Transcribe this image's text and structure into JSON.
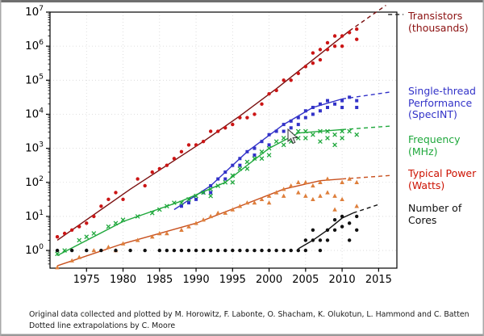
{
  "figure": {
    "caption_line1": "Original data collected and plotted by M. Horowitz, F. Labonte, O. Shacham, K. Olukotun, L. Hammond and C. Batten",
    "caption_line2": "Dotted line extrapolations by C. Moore"
  },
  "chart_data": {
    "type": "scatter",
    "title": "",
    "xlabel": "",
    "ylabel": "",
    "x_range": [
      1970,
      2017.5
    ],
    "x_ticks": [
      1975,
      1980,
      1985,
      1990,
      1995,
      2000,
      2005,
      2010,
      2015
    ],
    "y_scale": "log",
    "y_tick_exponents": [
      0,
      1,
      2,
      3,
      4,
      5,
      6,
      7
    ],
    "y_log_range": [
      -0.52,
      7.0
    ],
    "grid": "dotted",
    "extra_dashes": [
      {
        "color": "#222222",
        "from": [
          2016.3,
          6.93
        ],
        "to": [
          2018.4,
          6.93
        ]
      }
    ],
    "series": [
      {
        "name": "Transistors (thousands)",
        "label_lines": [
          "Transistors",
          "(thousands)"
        ],
        "color": "#7a1010",
        "marker_color": "#cc1515",
        "label_color": "#8b1010",
        "marker": "circle",
        "trend_solid": [
          [
            1971,
            0.3
          ],
          [
            1976,
            1.05
          ],
          [
            1981,
            1.8
          ],
          [
            1986,
            2.5
          ],
          [
            1991,
            3.2
          ],
          [
            1996,
            3.95
          ],
          [
            2001,
            4.75
          ],
          [
            2006,
            5.6
          ],
          [
            2011,
            6.45
          ]
        ],
        "trend_dashed": [
          [
            2011,
            6.45
          ],
          [
            2016,
            7.2
          ]
        ],
        "points": [
          [
            1971,
            0.4
          ],
          [
            1972,
            0.5
          ],
          [
            1973,
            0.6
          ],
          [
            1974,
            0.7
          ],
          [
            1975,
            0.8
          ],
          [
            1976,
            1.0
          ],
          [
            1977,
            1.3
          ],
          [
            1978,
            1.5
          ],
          [
            1979,
            1.7
          ],
          [
            1980,
            1.5
          ],
          [
            1982,
            2.1
          ],
          [
            1983,
            1.9
          ],
          [
            1984,
            2.3
          ],
          [
            1985,
            2.4
          ],
          [
            1986,
            2.5
          ],
          [
            1987,
            2.7
          ],
          [
            1988,
            2.9
          ],
          [
            1989,
            3.1
          ],
          [
            1990,
            3.1
          ],
          [
            1991,
            3.2
          ],
          [
            1992,
            3.5
          ],
          [
            1993,
            3.5
          ],
          [
            1994,
            3.6
          ],
          [
            1995,
            3.7
          ],
          [
            1996,
            3.9
          ],
          [
            1997,
            3.9
          ],
          [
            1998,
            4.0
          ],
          [
            1999,
            4.3
          ],
          [
            2000,
            4.6
          ],
          [
            2001,
            4.7
          ],
          [
            2002,
            5.0
          ],
          [
            2003,
            5.0
          ],
          [
            2004,
            5.2
          ],
          [
            2005,
            5.4
          ],
          [
            2006,
            5.5
          ],
          [
            2006,
            5.8
          ],
          [
            2007,
            5.9
          ],
          [
            2007,
            5.6
          ],
          [
            2008,
            5.9
          ],
          [
            2008,
            6.1
          ],
          [
            2009,
            6.0
          ],
          [
            2009,
            6.3
          ],
          [
            2010,
            6.3
          ],
          [
            2010,
            6.0
          ],
          [
            2011,
            6.4
          ],
          [
            2012,
            6.2
          ],
          [
            2012,
            6.5
          ]
        ]
      },
      {
        "name": "Single-thread Performance (SpecINT)",
        "label_lines": [
          "Single-thread",
          "Performance",
          "(SpecINT)"
        ],
        "color": "#3232c8",
        "marker": "square",
        "trend_solid": [
          [
            1987,
            1.2
          ],
          [
            1992,
            1.9
          ],
          [
            1997,
            2.9
          ],
          [
            2002,
            3.7
          ],
          [
            2006,
            4.2
          ],
          [
            2010,
            4.45
          ]
        ],
        "trend_dashed": [
          [
            2010,
            4.45
          ],
          [
            2016.5,
            4.65
          ]
        ],
        "points": [
          [
            1988,
            1.3
          ],
          [
            1989,
            1.4
          ],
          [
            1990,
            1.5
          ],
          [
            1991,
            1.7
          ],
          [
            1992,
            1.9
          ],
          [
            1992,
            1.7
          ],
          [
            1993,
            2.1
          ],
          [
            1994,
            2.3
          ],
          [
            1994,
            2.1
          ],
          [
            1995,
            2.5
          ],
          [
            1996,
            2.7
          ],
          [
            1996,
            2.5
          ],
          [
            1997,
            2.9
          ],
          [
            1998,
            3.0
          ],
          [
            1998,
            2.8
          ],
          [
            1999,
            3.2
          ],
          [
            2000,
            3.4
          ],
          [
            2000,
            3.1
          ],
          [
            2001,
            3.5
          ],
          [
            2002,
            3.7
          ],
          [
            2002,
            3.5
          ],
          [
            2003,
            3.8
          ],
          [
            2003,
            3.6
          ],
          [
            2004,
            3.9
          ],
          [
            2004,
            3.7
          ],
          [
            2005,
            4.1
          ],
          [
            2005,
            3.9
          ],
          [
            2006,
            4.2
          ],
          [
            2006,
            4.0
          ],
          [
            2007,
            4.3
          ],
          [
            2007,
            4.1
          ],
          [
            2008,
            4.4
          ],
          [
            2008,
            4.2
          ],
          [
            2009,
            4.3
          ],
          [
            2010,
            4.4
          ],
          [
            2010,
            4.2
          ],
          [
            2011,
            4.5
          ],
          [
            2012,
            4.4
          ],
          [
            2012,
            4.2
          ]
        ]
      },
      {
        "name": "Frequency (MHz)",
        "label_lines": [
          "Frequency",
          "(MHz)"
        ],
        "color": "#1fa83c",
        "marker": "x",
        "trend_solid": [
          [
            1971,
            -0.15
          ],
          [
            1980,
            0.85
          ],
          [
            1988,
            1.45
          ],
          [
            1994,
            2.0
          ],
          [
            2000,
            3.0
          ],
          [
            2004,
            3.45
          ],
          [
            2010,
            3.55
          ]
        ],
        "trend_dashed": [
          [
            2010,
            3.55
          ],
          [
            2016.5,
            3.65
          ]
        ],
        "points": [
          [
            1971,
            -0.1
          ],
          [
            1972,
            0.0
          ],
          [
            1974,
            0.3
          ],
          [
            1975,
            0.4
          ],
          [
            1976,
            0.5
          ],
          [
            1978,
            0.7
          ],
          [
            1979,
            0.8
          ],
          [
            1980,
            0.9
          ],
          [
            1982,
            1.0
          ],
          [
            1984,
            1.1
          ],
          [
            1985,
            1.2
          ],
          [
            1986,
            1.3
          ],
          [
            1987,
            1.4
          ],
          [
            1988,
            1.4
          ],
          [
            1989,
            1.5
          ],
          [
            1990,
            1.6
          ],
          [
            1991,
            1.7
          ],
          [
            1992,
            1.8
          ],
          [
            1992,
            1.6
          ],
          [
            1993,
            1.9
          ],
          [
            1994,
            2.0
          ],
          [
            1995,
            2.2
          ],
          [
            1995,
            2.0
          ],
          [
            1996,
            2.4
          ],
          [
            1997,
            2.6
          ],
          [
            1997,
            2.4
          ],
          [
            1998,
            2.7
          ],
          [
            1999,
            2.9
          ],
          [
            1999,
            2.7
          ],
          [
            2000,
            3.0
          ],
          [
            2000,
            2.8
          ],
          [
            2001,
            3.2
          ],
          [
            2002,
            3.3
          ],
          [
            2002,
            3.1
          ],
          [
            2003,
            3.4
          ],
          [
            2003,
            3.2
          ],
          [
            2004,
            3.5
          ],
          [
            2004,
            3.3
          ],
          [
            2005,
            3.5
          ],
          [
            2005,
            3.3
          ],
          [
            2006,
            3.4
          ],
          [
            2007,
            3.5
          ],
          [
            2007,
            3.2
          ],
          [
            2008,
            3.5
          ],
          [
            2008,
            3.3
          ],
          [
            2009,
            3.4
          ],
          [
            2009,
            3.1
          ],
          [
            2010,
            3.5
          ],
          [
            2010,
            3.3
          ],
          [
            2011,
            3.5
          ],
          [
            2012,
            3.4
          ]
        ]
      },
      {
        "name": "Typical Power (Watts)",
        "label_lines": [
          "Typical Power",
          "(Watts)"
        ],
        "color": "#c8501e",
        "marker_color": "#de7f3c",
        "label_color": "#cc1100",
        "marker": "triangle",
        "trend_solid": [
          [
            1971,
            -0.45
          ],
          [
            1980,
            0.2
          ],
          [
            1990,
            0.8
          ],
          [
            1996,
            1.3
          ],
          [
            2002,
            1.8
          ],
          [
            2007,
            2.05
          ],
          [
            2010,
            2.1
          ]
        ],
        "trend_dashed": [
          [
            2010,
            2.1
          ],
          [
            2016.5,
            2.2
          ]
        ],
        "points": [
          [
            1971,
            -0.5
          ],
          [
            1973,
            -0.3
          ],
          [
            1974,
            -0.2
          ],
          [
            1976,
            0.0
          ],
          [
            1978,
            0.1
          ],
          [
            1979,
            0.0
          ],
          [
            1980,
            0.2
          ],
          [
            1982,
            0.3
          ],
          [
            1984,
            0.4
          ],
          [
            1985,
            0.5
          ],
          [
            1986,
            0.5
          ],
          [
            1988,
            0.6
          ],
          [
            1989,
            0.7
          ],
          [
            1990,
            0.8
          ],
          [
            1991,
            0.9
          ],
          [
            1992,
            1.0
          ],
          [
            1993,
            1.1
          ],
          [
            1994,
            1.1
          ],
          [
            1995,
            1.2
          ],
          [
            1996,
            1.3
          ],
          [
            1997,
            1.4
          ],
          [
            1998,
            1.4
          ],
          [
            1999,
            1.5
          ],
          [
            2000,
            1.6
          ],
          [
            2000,
            1.4
          ],
          [
            2001,
            1.7
          ],
          [
            2002,
            1.8
          ],
          [
            2002,
            1.6
          ],
          [
            2003,
            1.9
          ],
          [
            2004,
            2.0
          ],
          [
            2004,
            1.7
          ],
          [
            2005,
            2.0
          ],
          [
            2005,
            1.6
          ],
          [
            2006,
            1.9
          ],
          [
            2006,
            1.5
          ],
          [
            2007,
            2.0
          ],
          [
            2007,
            1.6
          ],
          [
            2008,
            2.1
          ],
          [
            2008,
            1.7
          ],
          [
            2009,
            1.6
          ],
          [
            2009,
            1.2
          ],
          [
            2010,
            2.0
          ],
          [
            2010,
            1.5
          ],
          [
            2011,
            2.1
          ],
          [
            2012,
            2.0
          ],
          [
            2012,
            1.3
          ]
        ]
      },
      {
        "name": "Number of Cores",
        "label_lines": [
          "Number of",
          "Cores"
        ],
        "color": "#111111",
        "marker": "circle",
        "trend_solid": [
          [
            2004,
            0.05
          ],
          [
            2006,
            0.3
          ],
          [
            2008,
            0.6
          ],
          [
            2010,
            0.95
          ],
          [
            2011.5,
            1.1
          ]
        ],
        "trend_dashed": [
          [
            2011.5,
            1.1
          ],
          [
            2015,
            1.35
          ]
        ],
        "points": [
          [
            1971,
            0
          ],
          [
            1973,
            0
          ],
          [
            1975,
            0
          ],
          [
            1977,
            0
          ],
          [
            1979,
            0
          ],
          [
            1981,
            0
          ],
          [
            1983,
            0
          ],
          [
            1985,
            0
          ],
          [
            1986,
            0
          ],
          [
            1987,
            0
          ],
          [
            1988,
            0
          ],
          [
            1989,
            0
          ],
          [
            1990,
            0
          ],
          [
            1991,
            0
          ],
          [
            1992,
            0
          ],
          [
            1993,
            0
          ],
          [
            1994,
            0
          ],
          [
            1995,
            0
          ],
          [
            1996,
            0
          ],
          [
            1997,
            0
          ],
          [
            1998,
            0
          ],
          [
            1999,
            0
          ],
          [
            2000,
            0
          ],
          [
            2001,
            0
          ],
          [
            2002,
            0
          ],
          [
            2003,
            0
          ],
          [
            2004,
            0
          ],
          [
            2005,
            0.3
          ],
          [
            2005,
            0
          ],
          [
            2006,
            0.3
          ],
          [
            2006,
            0.6
          ],
          [
            2007,
            0.3
          ],
          [
            2007,
            0
          ],
          [
            2008,
            0.6
          ],
          [
            2008,
            0.3
          ],
          [
            2009,
            0.6
          ],
          [
            2009,
            0.9
          ],
          [
            2010,
            0.7
          ],
          [
            2010,
            1.0
          ],
          [
            2011,
            0.8
          ],
          [
            2011,
            0.3
          ],
          [
            2012,
            1.0
          ],
          [
            2012,
            0.6
          ]
        ]
      }
    ]
  }
}
